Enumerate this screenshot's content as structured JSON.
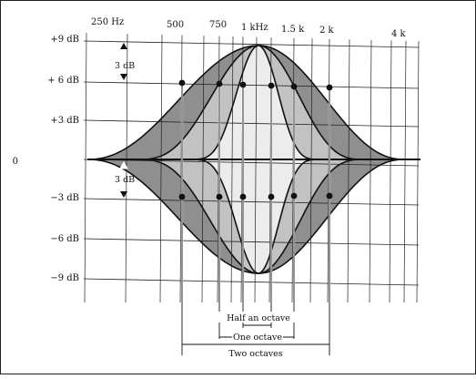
{
  "axis": {
    "frequency_ticks": [
      "250 Hz",
      "500",
      "750",
      "1 kHz",
      "1.5 k",
      "2 k",
      "4 k"
    ],
    "gain_ticks": [
      "+9 dB",
      "+ 6 dB",
      "+3 dB",
      "0",
      "−3 dB",
      "−6 dB",
      "−9 dB"
    ]
  },
  "annotations": {
    "boost_range": "3 dB",
    "cut_range": "3 dB"
  },
  "bandwidths": [
    {
      "label": "Half an octave"
    },
    {
      "label": "One octave"
    },
    {
      "label": "Two octaves"
    }
  ],
  "colors": {
    "two_octave_fill": "#8f8f8f",
    "one_octave_fill": "#c2c2c2",
    "half_octave_fill": "#ececec",
    "grid": "#222222"
  }
}
